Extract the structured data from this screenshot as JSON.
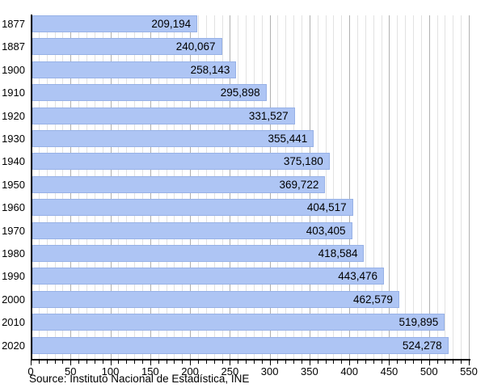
{
  "chart_data": {
    "type": "bar",
    "orientation": "horizontal",
    "categories": [
      "1877",
      "1887",
      "1900",
      "1910",
      "1920",
      "1930",
      "1940",
      "1950",
      "1960",
      "1970",
      "1980",
      "1990",
      "2000",
      "2010",
      "2020"
    ],
    "values": [
      209194,
      240067,
      258143,
      295898,
      331527,
      355441,
      375180,
      369722,
      404517,
      403405,
      418584,
      443476,
      462579,
      519895,
      524278
    ],
    "value_labels": [
      "209,194",
      "240,067",
      "258,143",
      "295,898",
      "331,527",
      "355,441",
      "375,180",
      "369,722",
      "404,517",
      "403,405",
      "418,584",
      "443,476",
      "462,579",
      "519,895",
      "524,278"
    ],
    "xlim": [
      0,
      550
    ],
    "x_tick_labels": [
      "0",
      "50",
      "100",
      "150",
      "200",
      "250",
      "300",
      "350",
      "400",
      "450",
      "500",
      "550"
    ],
    "x_major_step": 50,
    "x_minor_step": 10,
    "x_unit_divisor": 1000,
    "grid": "vertical-only",
    "legend": "none",
    "source": "Source: Instituto Nacional de Estadística, INE",
    "colors": {
      "bar_fill": "#aec5f4",
      "bar_border": "#97b1e6",
      "major_grid": "#b0b0b0",
      "minor_grid": "#e2e2e2",
      "axis": "#000000",
      "text": "#000000",
      "background": "#ffffff"
    }
  }
}
